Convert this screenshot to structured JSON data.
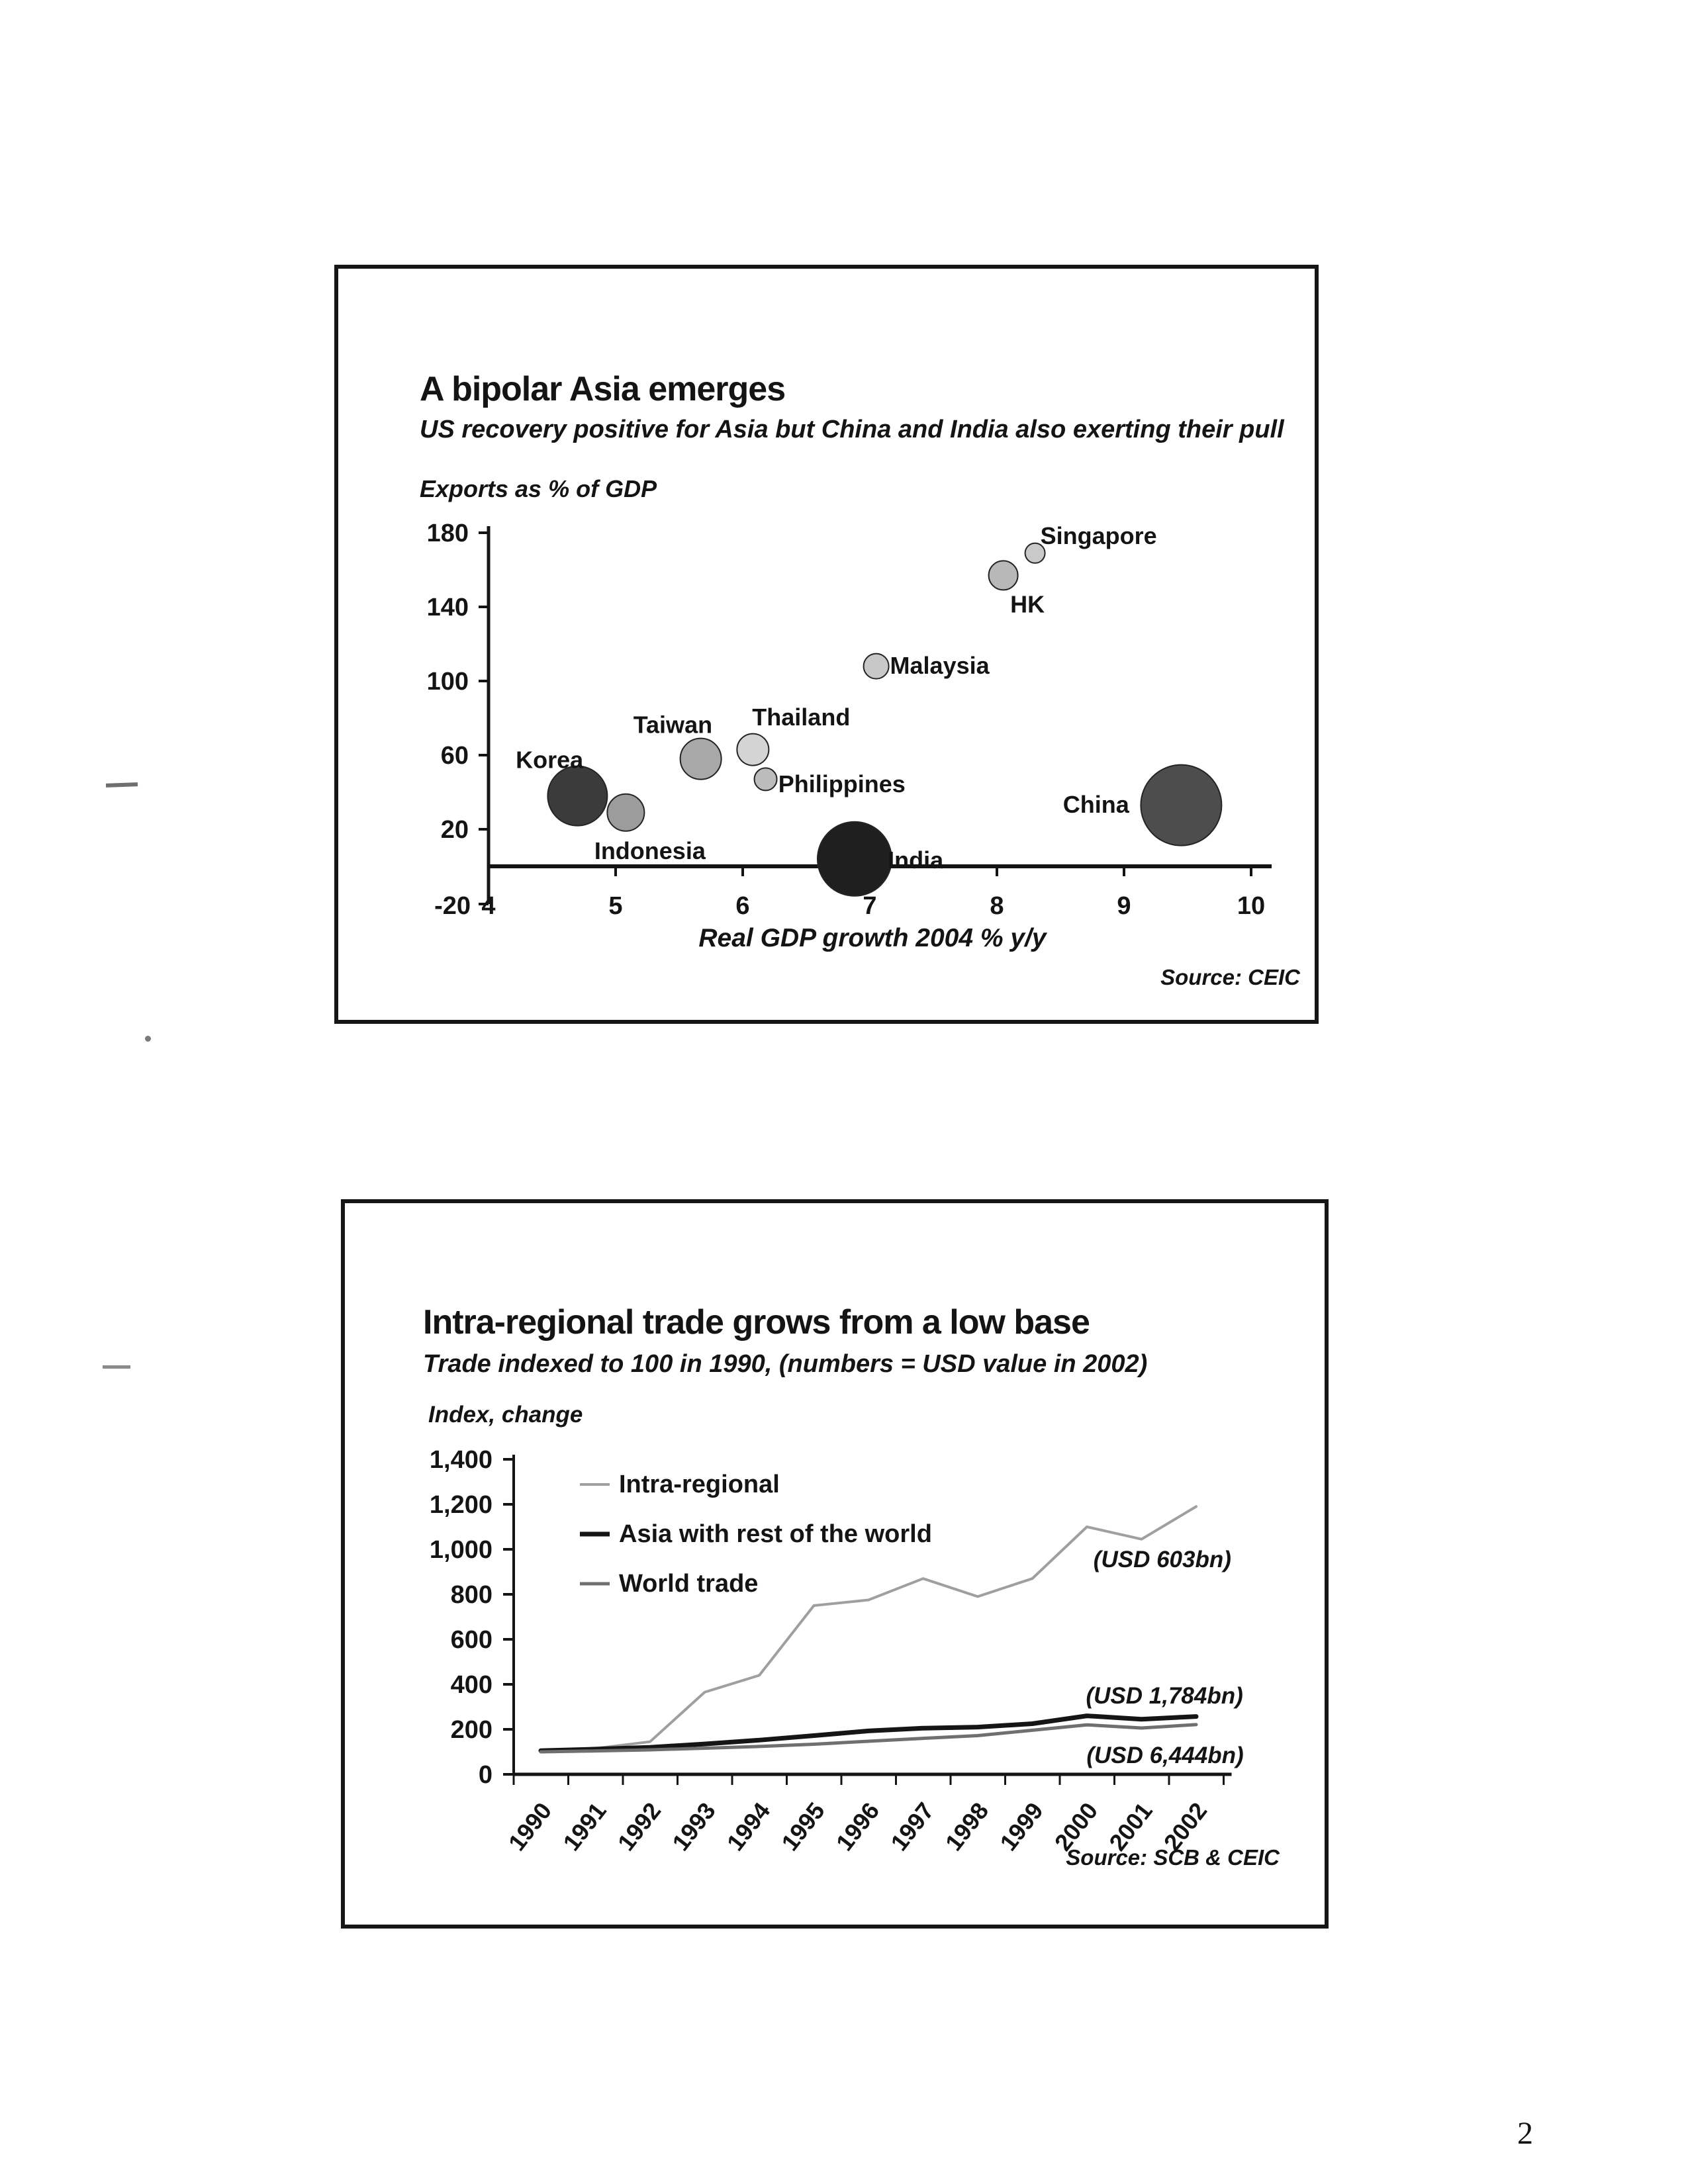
{
  "page": {
    "number": "2"
  },
  "chart_data": [
    {
      "type": "scatter",
      "title": "A bipolar Asia emerges",
      "subtitle": "US recovery positive for Asia but China and India also exerting their pull",
      "ylabel": "Exports as % of GDP",
      "xlabel": "Real GDP growth 2004 % y/y",
      "source": "Source: CEIC",
      "xlim": [
        4,
        10
      ],
      "ylim": [
        -20,
        180
      ],
      "x_ticks": [
        4,
        5,
        6,
        7,
        8,
        9,
        10
      ],
      "y_ticks": [
        180,
        140,
        100,
        60,
        20
      ],
      "y_min_label": "-20",
      "grid": false,
      "points": [
        {
          "name": "Korea",
          "x": 4.7,
          "y": 38,
          "r": 45,
          "color": "#3b3b3b",
          "lx": 4.48,
          "ly": 53,
          "anchor": "middle"
        },
        {
          "name": "Indonesia",
          "x": 5.08,
          "y": 29,
          "r": 28,
          "color": "#9c9c9c",
          "lx": 5.27,
          "ly": 4,
          "anchor": "middle"
        },
        {
          "name": "Taiwan",
          "x": 5.67,
          "y": 58,
          "r": 31,
          "color": "#a8a8a8",
          "lx": 5.45,
          "ly": 72,
          "anchor": "middle"
        },
        {
          "name": "Thailand",
          "x": 6.08,
          "y": 63,
          "r": 24,
          "color": "#d4d4d4",
          "lx": 6.46,
          "ly": 76,
          "anchor": "middle"
        },
        {
          "name": "Philippines",
          "x": 6.18,
          "y": 47,
          "r": 17,
          "color": "#bcbcbc",
          "lx": 6.78,
          "ly": 40,
          "anchor": "middle"
        },
        {
          "name": "Malaysia",
          "x": 7.05,
          "y": 108,
          "r": 19,
          "color": "#c8c8c8",
          "lx": 7.55,
          "ly": 104,
          "anchor": "middle"
        },
        {
          "name": "India",
          "x": 6.88,
          "y": 4,
          "r": 56,
          "color": "#1f1f1f",
          "lx": 7.36,
          "ly": -1,
          "anchor": "middle"
        },
        {
          "name": "HK",
          "x": 8.05,
          "y": 157,
          "r": 22,
          "color": "#b8b8b8",
          "lx": 8.24,
          "ly": 137,
          "anchor": "middle"
        },
        {
          "name": "Singapore",
          "x": 8.3,
          "y": 169,
          "r": 15,
          "color": "#c9c9c9",
          "lx": 8.8,
          "ly": 174,
          "anchor": "middle"
        },
        {
          "name": "China",
          "x": 9.45,
          "y": 33,
          "r": 61,
          "color": "#4d4d4d",
          "lx": 8.78,
          "ly": 29,
          "anchor": "middle"
        }
      ]
    },
    {
      "type": "line",
      "title": "Intra-regional trade grows from a low base",
      "subtitle": "Trade indexed to 100 in 1990, (numbers = USD value in 2002)",
      "ylabel": "Index, change",
      "source": "Source: SCB & CEIC",
      "categories": [
        "1990",
        "1991",
        "1992",
        "1993",
        "1994",
        "1995",
        "1996",
        "1997",
        "1998",
        "1999",
        "2000",
        "2001",
        "2002"
      ],
      "ylim": [
        0,
        1400
      ],
      "y_tick_labels": [
        "0",
        "200",
        "400",
        "600",
        "800",
        "1,000",
        "1,200",
        "1,400"
      ],
      "grid": false,
      "legend_position": "top-left",
      "series": [
        {
          "name": "Intra-regional",
          "color": "#9f9f9f",
          "width": 4,
          "values": [
            100,
            115,
            145,
            365,
            440,
            750,
            775,
            870,
            790,
            870,
            1100,
            1045,
            1190
          ]
        },
        {
          "name": "Asia with rest of the world",
          "color": "#151515",
          "width": 7,
          "values": [
            105,
            112,
            120,
            135,
            152,
            172,
            193,
            205,
            210,
            225,
            260,
            245,
            257
          ]
        },
        {
          "name": "World trade",
          "color": "#6f6f6f",
          "width": 5,
          "values": [
            100,
            104,
            109,
            116,
            124,
            134,
            147,
            160,
            172,
            196,
            220,
            206,
            221
          ]
        }
      ],
      "annotations": [
        {
          "text": "(USD 603bn)",
          "xi": 11.38,
          "v": 920
        },
        {
          "text": "(USD 1,784bn)",
          "xi": 11.42,
          "v": 315
        },
        {
          "text": "(USD 6,444bn)",
          "xi": 11.43,
          "v": 50
        }
      ]
    }
  ]
}
